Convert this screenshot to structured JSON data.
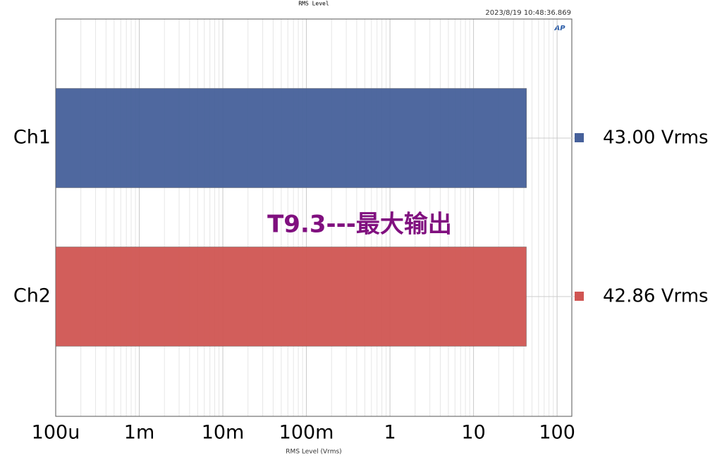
{
  "chart_data": {
    "type": "bar",
    "orientation": "horizontal",
    "title": "RMS Level",
    "timestamp": "2023/8/19 10:48:36.869",
    "logo": "AP",
    "annotation": "T9.3---最大输出",
    "x_label": "RMS Level (Vrms)",
    "categories": [
      "Ch1",
      "Ch2"
    ],
    "series": [
      {
        "name": "Ch1",
        "color": "#46609a",
        "values": [
          43.0,
          null
        ],
        "value_labels": [
          "43.00 Vrms",
          null
        ]
      },
      {
        "name": "Ch2",
        "color": "#d05552",
        "values": [
          null,
          42.86
        ],
        "value_labels": [
          null,
          "42.86 Vrms"
        ]
      }
    ],
    "xlim": [
      0.0001,
      150
    ],
    "log_x": true,
    "grid": true,
    "xticks": [
      {
        "value": 0.0001,
        "label": "100u"
      },
      {
        "value": 0.001,
        "label": "1m"
      },
      {
        "value": 0.01,
        "label": "10m"
      },
      {
        "value": 0.1,
        "label": "100m"
      },
      1,
      10,
      100
    ]
  }
}
